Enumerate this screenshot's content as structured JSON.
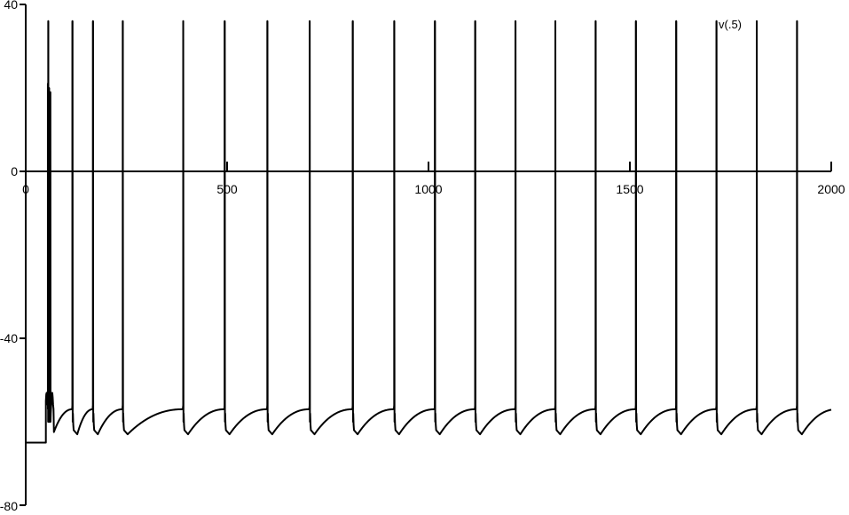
{
  "chart_data": {
    "type": "line",
    "series": [
      {
        "name": "v(.5)",
        "color": "#000000",
        "resting_potential": -65,
        "stimulus_onset": 50,
        "early_burst_spikes": [
          {
            "t": 55,
            "peak": 21
          },
          {
            "t": 58,
            "peak": 20
          },
          {
            "t": 61,
            "peak": 19
          }
        ],
        "spike_times": [
          56,
          116,
          167,
          241,
          391,
          494,
          600,
          705,
          812,
          915,
          1016,
          1116,
          1216,
          1315,
          1415,
          1515,
          1615,
          1715,
          1815,
          1915
        ],
        "spike_peak": 36,
        "after_hyperpolarization": -63,
        "interspike_plateau": -57
      }
    ],
    "x_axis": {
      "range": [
        0,
        2000
      ],
      "ticks": [
        0,
        500,
        1000,
        1500,
        2000
      ],
      "tick_labels": [
        "0",
        "500",
        "1000",
        "1500",
        "2000"
      ],
      "crosses_at_y": 0
    },
    "y_axis": {
      "range": [
        -80,
        40
      ],
      "ticks": [
        40,
        0,
        -40,
        -80
      ],
      "tick_labels": [
        "40",
        "0",
        "-40",
        "-80"
      ]
    },
    "grid": false,
    "legend_position": "top-right"
  }
}
